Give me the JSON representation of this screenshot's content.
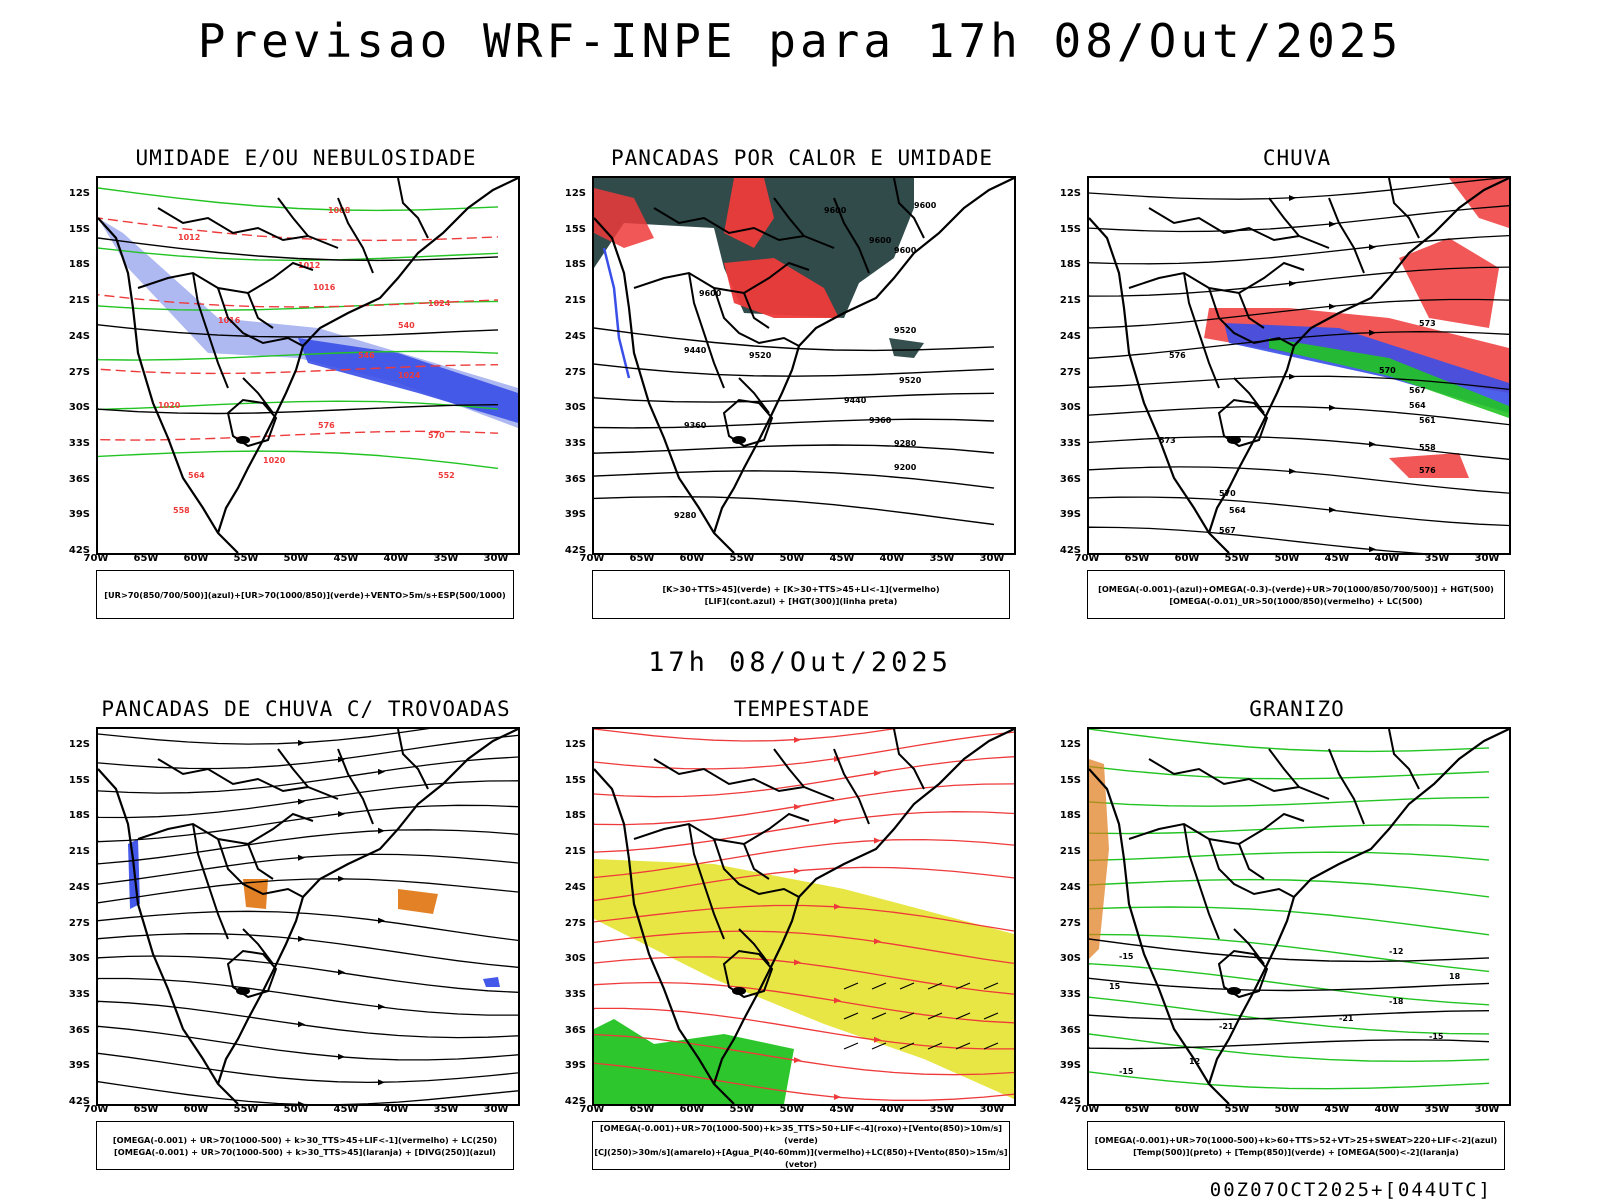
{
  "header": {
    "title": "Previsao WRF-INPE  para 17h 08/Out/2025"
  },
  "mid_title": "17h 08/Out/2025",
  "footer_id": "00Z07OCT2025+[044UTC]",
  "colors": {
    "blue": "#3a4fe8",
    "lightblue": "#9aa6ee",
    "green": "#22c422",
    "red": "#ee3a3a",
    "darkteal": "#1f3b3b",
    "yellow": "#e6e330",
    "orange": "#e07a1a"
  },
  "chart_data": [
    {
      "type": "map",
      "id": "umidade",
      "title": "UMIDADE E/OU NEBULOSIDADE",
      "legend": [
        "[UR>70(850/700/500)](azul)+[UR>70(1000/850)](verde)+VENTO>5m/s+ESP(500/1000)"
      ],
      "contour_labels": [
        "1008",
        "1012",
        "1012",
        "1016",
        "1016",
        "1020",
        "1020",
        "1024",
        "1024",
        "576",
        "570",
        "564",
        "558",
        "552",
        "546",
        "540"
      ],
      "y_ticks": [
        "12S",
        "15S",
        "18S",
        "21S",
        "24S",
        "27S",
        "30S",
        "33S",
        "36S",
        "39S",
        "42S"
      ],
      "x_ticks": [
        "70W",
        "65W",
        "60W",
        "55W",
        "50W",
        "45W",
        "40W",
        "35W",
        "30W"
      ]
    },
    {
      "type": "map",
      "id": "pancadas-calor",
      "title": "PANCADAS POR CALOR E UMIDADE",
      "legend": [
        "[K>30+TTS>45](verde) + [K>30+TTS>45+LI<-1](vermelho)",
        "[LIF](cont.azul) + [HGT(300)](linha preta)"
      ],
      "contour_labels": [
        "9600",
        "9600",
        "9600",
        "9600",
        "9600",
        "9520",
        "9520",
        "9520",
        "9440",
        "9440",
        "9360",
        "9360",
        "9280",
        "9200",
        "9280"
      ],
      "y_ticks": [
        "12S",
        "15S",
        "18S",
        "21S",
        "24S",
        "27S",
        "30S",
        "33S",
        "36S",
        "39S",
        "42S"
      ],
      "x_ticks": [
        "70W",
        "65W",
        "60W",
        "55W",
        "50W",
        "45W",
        "40W",
        "35W",
        "30W"
      ]
    },
    {
      "type": "map",
      "id": "chuva",
      "title": "CHUVA",
      "legend": [
        "[OMEGA(-0.001)-(azul)+OMEGA(-0.3)-(verde)+UR>70(1000/850/700/500)] + HGT(500)",
        "[OMEGA(-0.01)_UR>50(1000/850)(vermelho) + LC(500)"
      ],
      "contour_labels": [
        "576",
        "573",
        "570",
        "567",
        "564",
        "561",
        "558",
        "576",
        "573",
        "570",
        "567",
        "564"
      ],
      "y_ticks": [
        "12S",
        "15S",
        "18S",
        "21S",
        "24S",
        "27S",
        "30S",
        "33S",
        "36S",
        "39S",
        "42S"
      ],
      "x_ticks": [
        "70W",
        "65W",
        "60W",
        "55W",
        "50W",
        "45W",
        "40W",
        "35W",
        "30W"
      ]
    },
    {
      "type": "map",
      "id": "trovoadas",
      "title": "PANCADAS DE CHUVA C/ TROVOADAS",
      "legend": [
        "[OMEGA(-0.001) + UR>70(1000-500) + k>30_TTS>45+LIF<-1](vermelho) + LC(250)",
        "[OMEGA(-0.001) + UR>70(1000-500) + k>30_TTS>45](laranja) + [DIVG(250)](azul)"
      ],
      "contour_labels": [],
      "y_ticks": [
        "12S",
        "15S",
        "18S",
        "21S",
        "24S",
        "27S",
        "30S",
        "33S",
        "36S",
        "39S",
        "42S"
      ],
      "x_ticks": [
        "70W",
        "65W",
        "60W",
        "55W",
        "50W",
        "45W",
        "40W",
        "35W",
        "30W"
      ]
    },
    {
      "type": "map",
      "id": "tempestade",
      "title": "TEMPESTADE",
      "legend": [
        "[OMEGA(-0.001)+UR>70(1000-500)+k>35_TTS>50+LIF<-4](roxo)+[Vento(850)>10m/s](verde)",
        "[CJ(250)>30m/s](amarelo)+[Agua_P(40-60mm)](vermelho)+LC(850)+[Vento(850)>15m/s](vetor)"
      ],
      "contour_labels": [],
      "y_ticks": [
        "12S",
        "15S",
        "18S",
        "21S",
        "24S",
        "27S",
        "30S",
        "33S",
        "36S",
        "39S",
        "42S"
      ],
      "x_ticks": [
        "70W",
        "65W",
        "60W",
        "55W",
        "50W",
        "45W",
        "40W",
        "35W",
        "30W"
      ]
    },
    {
      "type": "map",
      "id": "granizo",
      "title": "GRANIZO",
      "legend": [
        "[OMEGA(-0.001)+UR>70(1000-500)+k>60+TTS>52+VT>25+SWEAT>220+LIF<-2](azul)",
        "[Temp(500)](preto) + [Temp(850)](verde) + [OMEGA(500)<-2](laranja)"
      ],
      "contour_labels": [
        "-12",
        "-15",
        "-18",
        "-21",
        "-21",
        "-15",
        "-15",
        "12",
        "15",
        "18"
      ],
      "y_ticks": [
        "12S",
        "15S",
        "18S",
        "21S",
        "24S",
        "27S",
        "30S",
        "33S",
        "36S",
        "39S",
        "42S"
      ],
      "x_ticks": [
        "70W",
        "65W",
        "60W",
        "55W",
        "50W",
        "45W",
        "40W",
        "35W",
        "30W"
      ]
    }
  ]
}
